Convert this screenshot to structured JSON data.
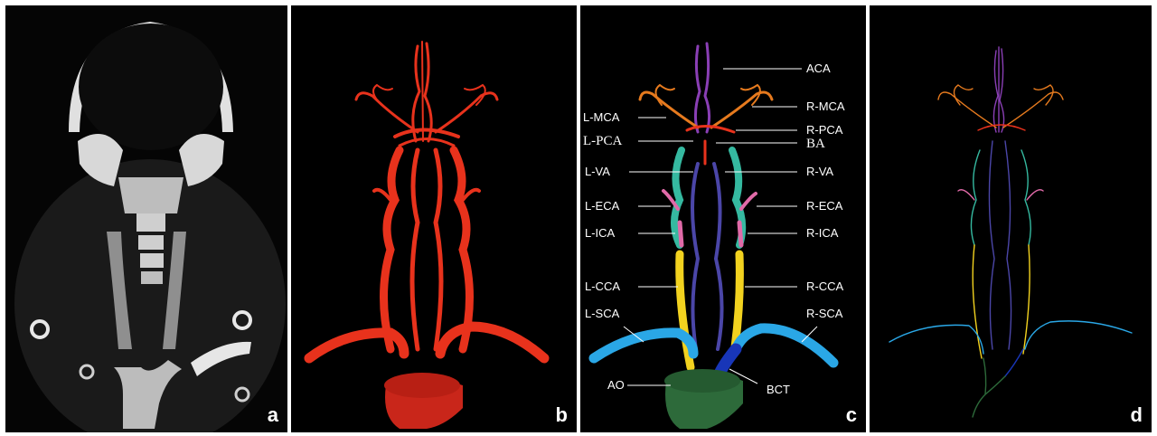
{
  "panels": [
    {
      "id": "a",
      "label": "a"
    },
    {
      "id": "b",
      "label": "b"
    },
    {
      "id": "c",
      "label": "c"
    },
    {
      "id": "d",
      "label": "d"
    }
  ],
  "annotations": {
    "left": [
      "L-MCA",
      "L-PCA",
      "L-VA",
      "L-ECA",
      "L-ICA",
      "L-CCA",
      "L-SCA",
      "AO"
    ],
    "right": [
      "ACA",
      "R-MCA",
      "R-PCA",
      "BA",
      "R-VA",
      "R-ECA",
      "R-ICA",
      "R-CCA",
      "R-SCA",
      "BCT"
    ]
  },
  "colors": {
    "vessel_red": "#e8321c",
    "aca_purple": "#8a3fb5",
    "mca_orange": "#e67a1e",
    "va_teal": "#35b9a0",
    "eca_pink": "#e06aa8",
    "ica_blue": "#4b46a8",
    "cca_yellow": "#f2d21f",
    "sca_cyan": "#2aa7e6",
    "bct_blue": "#1836b8",
    "ao_green": "#2d6a3a",
    "background": "#000000",
    "text": "#ffffff"
  }
}
